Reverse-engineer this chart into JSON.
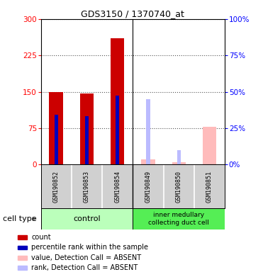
{
  "title": "GDS3150 / 1370740_at",
  "samples": [
    "GSM190852",
    "GSM190853",
    "GSM190854",
    "GSM190849",
    "GSM190850",
    "GSM190851"
  ],
  "count_values": [
    150,
    147,
    260,
    0,
    0,
    0
  ],
  "count_absent_values": [
    0,
    0,
    0,
    10,
    5,
    78
  ],
  "percentile_values": [
    103,
    100,
    142,
    0,
    0,
    0
  ],
  "rank_absent_values": [
    0,
    0,
    0,
    45,
    10,
    0
  ],
  "left_ylim": [
    0,
    300
  ],
  "right_ylim": [
    0,
    100
  ],
  "left_yticks": [
    0,
    75,
    150,
    225,
    300
  ],
  "right_yticks": [
    0,
    25,
    50,
    75,
    100
  ],
  "bar_color_count": "#cc0000",
  "bar_color_percentile": "#0000bb",
  "bar_color_absent_val": "#ffbbbb",
  "bar_color_absent_rank": "#bbbbff",
  "bg_color_samples": "#d0d0d0",
  "group_color_control": "#bbffbb",
  "group_color_inner": "#55ee55",
  "legend_items": [
    {
      "color": "#cc0000",
      "label": "count"
    },
    {
      "color": "#0000bb",
      "label": "percentile rank within the sample"
    },
    {
      "color": "#ffbbbb",
      "label": "value, Detection Call = ABSENT"
    },
    {
      "color": "#bbbbff",
      "label": "rank, Detection Call = ABSENT"
    }
  ]
}
